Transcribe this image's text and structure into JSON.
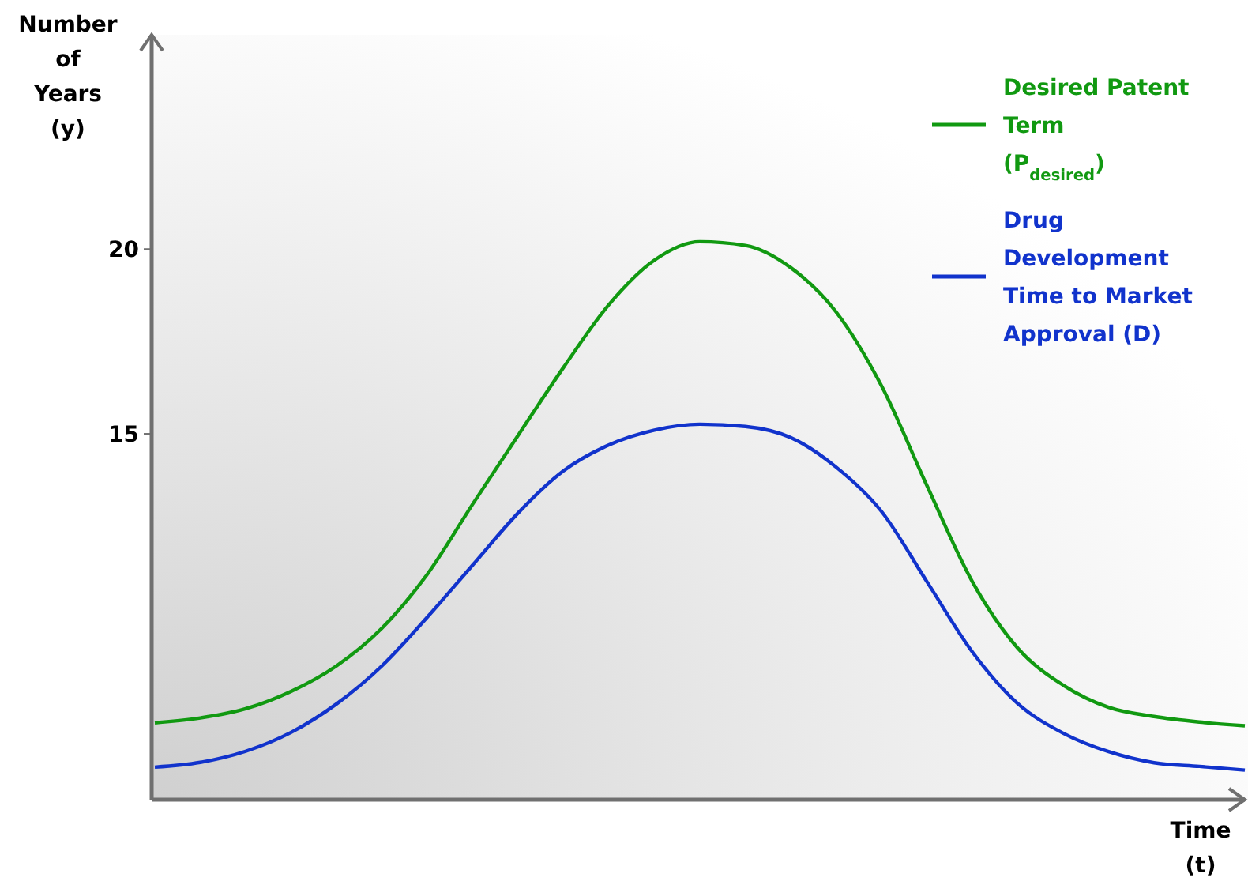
{
  "chart_data": {
    "type": "line",
    "xlabel": "Time\n(t)",
    "ylabel": "Number\nof\nYears\n(y)",
    "categories": [
      null,
      null,
      null,
      null,
      null,
      null,
      null,
      null,
      null,
      null,
      null,
      null,
      null,
      null,
      null,
      null,
      null,
      null,
      null,
      null,
      null,
      null,
      null,
      null,
      null
    ],
    "series": [
      {
        "name": "Desired Patent\nTerm\n(P$_{desired}$)",
        "color": "#119911",
        "values": [
          7.18,
          7.31,
          7.56,
          8.03,
          8.72,
          9.74,
          11.2,
          13.1,
          14.96,
          16.8,
          18.5,
          19.7,
          20.2,
          20.1,
          19.5,
          18.3,
          16.3,
          13.6,
          11.0,
          9.2,
          8.2,
          7.6,
          7.35,
          7.2,
          7.1
        ]
      },
      {
        "name": "Drug\nDevelopment\nTime to Market\nApproval (D)",
        "color": "#1133cc",
        "values": [
          5.98,
          6.11,
          6.41,
          6.92,
          7.69,
          8.72,
          10.04,
          11.45,
          12.86,
          14.0,
          14.7,
          15.1,
          15.26,
          15.2,
          14.9,
          14.1,
          12.9,
          11.0,
          9.1,
          7.7,
          6.9,
          6.4,
          6.1,
          6.0,
          5.9
        ]
      }
    ],
    "ylim": [
      5.1,
      25.8
    ],
    "yticks": [
      15,
      20
    ],
    "grid": false,
    "legend": "top right",
    "marker": "none",
    "line_style": "solid"
  }
}
